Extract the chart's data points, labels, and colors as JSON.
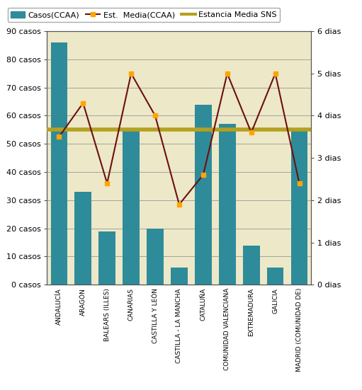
{
  "categories": [
    "ANDALUCÍA",
    "ARAGÓN",
    "BALEARS (ILLES)",
    "CANARIAS",
    "CASTILLA Y LEÓN",
    "CASTILLA - LA MANCHA",
    "CATALUÑA",
    "COMUNIDAD VALENCIANA",
    "EXTREMADURA",
    "GALICIA",
    "MADRID (COMUNIDAD DE)"
  ],
  "bar_values": [
    86,
    33,
    19,
    55,
    20,
    6,
    64,
    57,
    14,
    6,
    55
  ],
  "line_values": [
    3.5,
    4.3,
    2.4,
    5.0,
    4.0,
    1.9,
    2.6,
    5.0,
    3.6,
    5.0,
    2.4
  ],
  "sns_value": 3.67,
  "bar_color": "#2E8B9A",
  "line_color": "#6B1010",
  "marker_color": "#FFA500",
  "sns_color": "#B5A020",
  "background_color": "#EDE8C8",
  "ylabel_left": "casos",
  "ylabel_right": "dias",
  "ylim_left": [
    0,
    90
  ],
  "ylim_right": [
    0,
    6
  ],
  "yticks_left": [
    0,
    10,
    20,
    30,
    40,
    50,
    60,
    70,
    80,
    90
  ],
  "ytick_labels_left": [
    "0 casos",
    "10 casos",
    "20 casos",
    "30 casos",
    "40 casos",
    "50 casos",
    "60 casos",
    "70 casos",
    "80 casos",
    "90 casos"
  ],
  "yticks_right": [
    0,
    1,
    2,
    3,
    4,
    5,
    6
  ],
  "ytick_labels_right": [
    "0 dias",
    "1 dias",
    "2 dias",
    "3 dias",
    "4 dias",
    "5 dias",
    "6 dias"
  ],
  "legend_bar": "Casos(CCAA)",
  "legend_line": "Est.  Media(CCAA)",
  "legend_sns": "Estancia Media SNS",
  "grid_color": "#888888",
  "tick_fontsize": 8,
  "legend_fontsize": 8
}
